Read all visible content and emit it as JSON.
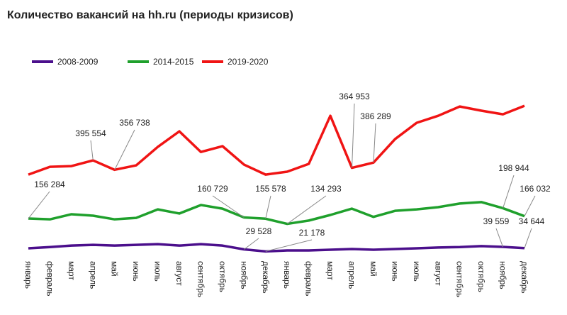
{
  "chart_data": {
    "type": "line",
    "title": "Количество вакансий на hh.ru  (периоды кризисов)",
    "categories": [
      "январь",
      "февраль",
      "март",
      "апрель",
      "май",
      "июнь",
      "июль",
      "август",
      "сентябрь",
      "октябрь",
      "ноябрь",
      "декабрь",
      "январь",
      "февраль",
      "март",
      "апрель",
      "май",
      "июнь",
      "июль",
      "август",
      "сентябрь",
      "октябрь",
      "ноябрь",
      "декабрь"
    ],
    "legend": "top-left",
    "series": [
      {
        "name": "2008-2009",
        "color": "#4b0f8c",
        "values": [
          34000,
          39000,
          45000,
          48000,
          45000,
          48000,
          51000,
          45000,
          51000,
          45000,
          29528,
          21178,
          25000,
          25000,
          28000,
          31000,
          28000,
          31000,
          34000,
          37000,
          39000,
          43000,
          39559,
          34644
        ],
        "value_labels": [
          null,
          null,
          null,
          null,
          null,
          null,
          null,
          null,
          null,
          null,
          "29 528",
          "21 178",
          null,
          null,
          null,
          null,
          null,
          null,
          null,
          null,
          null,
          null,
          "39 559",
          "34 644"
        ]
      },
      {
        "name": "2014-2015",
        "color": "#1fa02c",
        "values": [
          156284,
          153000,
          174000,
          168000,
          153000,
          159000,
          194000,
          177000,
          212000,
          197000,
          160729,
          155578,
          134293,
          148000,
          171000,
          197000,
          163000,
          188000,
          194000,
          203000,
          218000,
          224000,
          198944,
          166032
        ],
        "value_labels": [
          "156 284",
          null,
          null,
          null,
          null,
          null,
          null,
          null,
          null,
          null,
          "160 729",
          "155 578",
          "134 293",
          null,
          null,
          null,
          null,
          null,
          null,
          null,
          null,
          null,
          "198 944",
          "166 032"
        ]
      },
      {
        "name": "2019-2020",
        "color": "#f01414",
        "values": [
          337000,
          369000,
          372000,
          395554,
          356738,
          375000,
          451000,
          515000,
          430000,
          454000,
          378000,
          337000,
          349000,
          381000,
          579000,
          364953,
          386289,
          483000,
          550000,
          579000,
          617000,
          600000,
          585000,
          620000
        ],
        "value_labels": [
          null,
          null,
          null,
          "395 554",
          "356 738",
          null,
          null,
          null,
          null,
          null,
          null,
          null,
          null,
          null,
          null,
          "364 953",
          "386 289",
          null,
          null,
          null,
          null,
          null,
          null,
          null
        ]
      }
    ]
  }
}
